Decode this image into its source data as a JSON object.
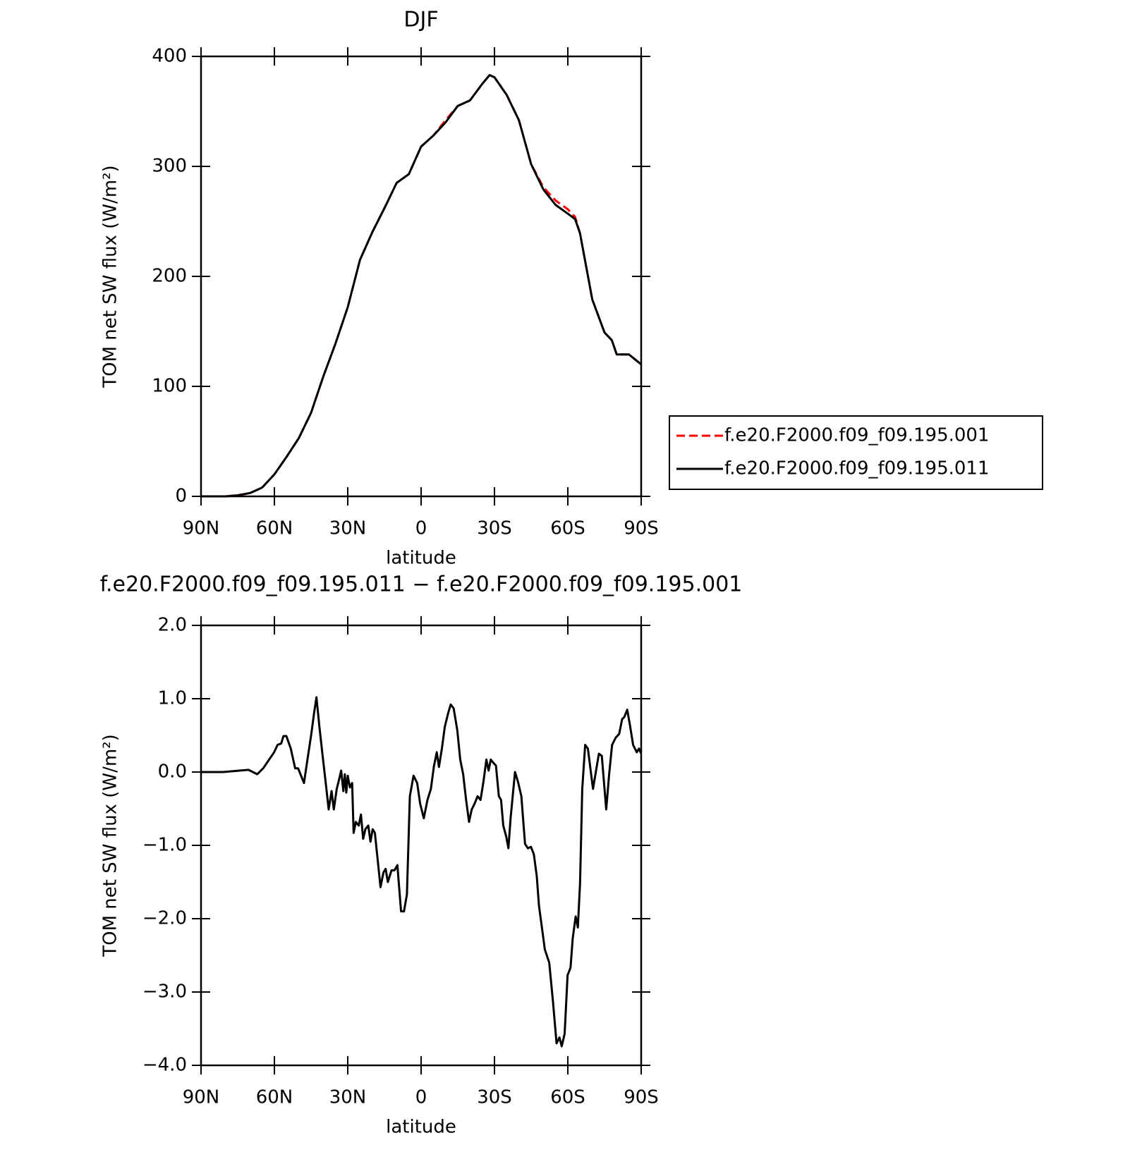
{
  "chart_data": [
    {
      "type": "line",
      "title": "DJF",
      "xlabel": "latitude",
      "ylabel": "TOM net SW flux (W/m²)",
      "xlim": [
        90,
        -90
      ],
      "xticks": [
        {
          "value": 90,
          "label": "90N"
        },
        {
          "value": 60,
          "label": "60N"
        },
        {
          "value": 30,
          "label": "30N"
        },
        0,
        {
          "value": -30,
          "label": "30S"
        },
        {
          "value": -60,
          "label": "60S"
        },
        {
          "value": -90,
          "label": "90S"
        }
      ],
      "ylim": [
        0,
        400
      ],
      "yticks": [
        0,
        100,
        200,
        300,
        400
      ],
      "legend": "right",
      "x": [
        90,
        85,
        80,
        75,
        70,
        65,
        60,
        55,
        50,
        45,
        40,
        35,
        30,
        25,
        20,
        15,
        10,
        5,
        0,
        -5,
        -10,
        -15,
        -20,
        -25,
        -28,
        -30,
        -35,
        -40,
        -45,
        -50,
        -55,
        -60,
        -63,
        -65,
        -70,
        -75,
        -78,
        -80,
        -85,
        -90
      ],
      "series": [
        {
          "name": "f.e20.F2000.f09_f09.195.001",
          "color": "#ff0000",
          "dash": true,
          "values": [
            0,
            0,
            0,
            1,
            3,
            8,
            20,
            36,
            53,
            76,
            109,
            139,
            172,
            215,
            240,
            262,
            285,
            293,
            318,
            328,
            342,
            355,
            360,
            375,
            383,
            381,
            365,
            342,
            302,
            281,
            269,
            261,
            254,
            239,
            179,
            149,
            142,
            129,
            129,
            120
          ]
        },
        {
          "name": "f.e20.F2000.f09_f09.195.011",
          "color": "#000000",
          "dash": false,
          "values": [
            0,
            0,
            0,
            1,
            3,
            8,
            20,
            36,
            53,
            76,
            109,
            139,
            172,
            215,
            240,
            262,
            285,
            293,
            318,
            328,
            340,
            355,
            360,
            375,
            383,
            381,
            365,
            342,
            302,
            279,
            265,
            257,
            252,
            239,
            179,
            149,
            142,
            129,
            129,
            120
          ]
        }
      ]
    },
    {
      "type": "line",
      "title": "f.e20.F2000.f09_f09.195.011 − f.e20.F2000.f09_f09.195.001",
      "xlabel": "latitude",
      "ylabel": "TOM net SW flux (W/m²)",
      "xlim": [
        90,
        -90
      ],
      "xticks": [
        {
          "value": 90,
          "label": "90N"
        },
        {
          "value": 60,
          "label": "60N"
        },
        {
          "value": 30,
          "label": "30N"
        },
        0,
        {
          "value": -30,
          "label": "30S"
        },
        {
          "value": -60,
          "label": "60S"
        },
        {
          "value": -90,
          "label": "90S"
        }
      ],
      "ylim": [
        -4,
        2
      ],
      "yticks": [
        {
          "value": 2,
          "label": "2.0"
        },
        {
          "value": 1,
          "label": "1.0"
        },
        {
          "value": 0,
          "label": "0.0"
        },
        {
          "value": -1,
          "label": "−1.0"
        },
        {
          "value": -2,
          "label": "−2.0"
        },
        {
          "value": -3,
          "label": "−3.0"
        },
        {
          "value": -4,
          "label": "−4.0"
        }
      ],
      "x": [
        90,
        81,
        70.6,
        67,
        64.6,
        60.1,
        58.7,
        57.2,
        56.3,
        55.1,
        53.3,
        51.5,
        50.3,
        47.9,
        46.7,
        44.9,
        43.7,
        42.8,
        41.6,
        40.1,
        38.9,
        37.8,
        36.6,
        35.7,
        34.5,
        33.6,
        32.7,
        31.8,
        31.2,
        30.6,
        30,
        29.1,
        28.2,
        27.6,
        26.7,
        25.5,
        24.6,
        23.7,
        22.8,
        21.6,
        20.7,
        19.8,
        18.9,
        18,
        16.6,
        15.4,
        14.5,
        13.6,
        12.1,
        10.9,
        9.7,
        8.2,
        7,
        5.8,
        4.6,
        3.1,
        1.6,
        0.4,
        -1.1,
        -2.6,
        -4,
        -5.2,
        -6.4,
        -7.3,
        -8.5,
        -9.7,
        -11.2,
        -12.1,
        -13.3,
        -14.8,
        -16,
        -17.2,
        -18.4,
        -19.6,
        -20.7,
        -21.9,
        -23.1,
        -24.3,
        -25.5,
        -26.7,
        -27.6,
        -28.5,
        -29.7,
        -30.6,
        -31.8,
        -32.7,
        -33.6,
        -34.8,
        -35.7,
        -36.6,
        -38.4,
        -39.6,
        -41,
        -42.5,
        -43.7,
        -44.9,
        -46.1,
        -47.3,
        -48.2,
        -49.4,
        -50.6,
        -52.4,
        -53.9,
        -55.4,
        -56.6,
        -57.5,
        -58.7,
        -59.9,
        -61.1,
        -62,
        -63.2,
        -64.1,
        -65,
        -65.9,
        -67.1,
        -68.2,
        -70.3,
        -72.7,
        -73.9,
        -75.7,
        -76.9,
        -78.1,
        -79.6,
        -81,
        -82.2,
        -83.1,
        -84.3,
        -85.5,
        -86.7,
        -88.2,
        -89.1,
        -90
      ],
      "series": [
        {
          "color": "#000000",
          "dash": false,
          "values": [
            0,
            0,
            0.03,
            -0.03,
            0.05,
            0.27,
            0.37,
            0.39,
            0.49,
            0.49,
            0.32,
            0.05,
            0.05,
            -0.15,
            0.12,
            0.52,
            0.82,
            1.02,
            0.62,
            0.17,
            -0.18,
            -0.51,
            -0.26,
            -0.51,
            -0.23,
            -0.11,
            0.02,
            -0.26,
            -0.03,
            -0.28,
            -0.05,
            -0.21,
            -0.15,
            -0.83,
            -0.68,
            -0.73,
            -0.58,
            -0.91,
            -0.78,
            -0.73,
            -0.95,
            -0.78,
            -0.83,
            -1.12,
            -1.57,
            -1.37,
            -1.32,
            -1.5,
            -1.34,
            -1.34,
            -1.27,
            -1.9,
            -1.9,
            -1.67,
            -0.33,
            -0.05,
            -0.15,
            -0.43,
            -0.63,
            -0.38,
            -0.23,
            0.07,
            0.27,
            0.07,
            0.32,
            0.62,
            0.82,
            0.92,
            0.87,
            0.57,
            0.17,
            -0.03,
            -0.38,
            -0.68,
            -0.51,
            -0.43,
            -0.33,
            -0.38,
            -0.13,
            0.17,
            0.02,
            0.17,
            0.12,
            0.09,
            -0.33,
            -0.38,
            -0.73,
            -0.88,
            -1.04,
            -0.63,
            0,
            -0.13,
            -0.33,
            -0.98,
            -1.04,
            -1.02,
            -1.12,
            -1.42,
            -1.82,
            -2.12,
            -2.42,
            -2.6,
            -3.12,
            -3.7,
            -3.62,
            -3.74,
            -3.57,
            -2.77,
            -2.67,
            -2.27,
            -1.97,
            -2.12,
            -1.52,
            -0.23,
            0.37,
            0.32,
            -0.23,
            0.25,
            0.22,
            -0.51,
            -0.03,
            0.37,
            0.47,
            0.52,
            0.72,
            0.75,
            0.85,
            0.62,
            0.37,
            0.27,
            0.32,
            0.25
          ]
        }
      ]
    }
  ]
}
